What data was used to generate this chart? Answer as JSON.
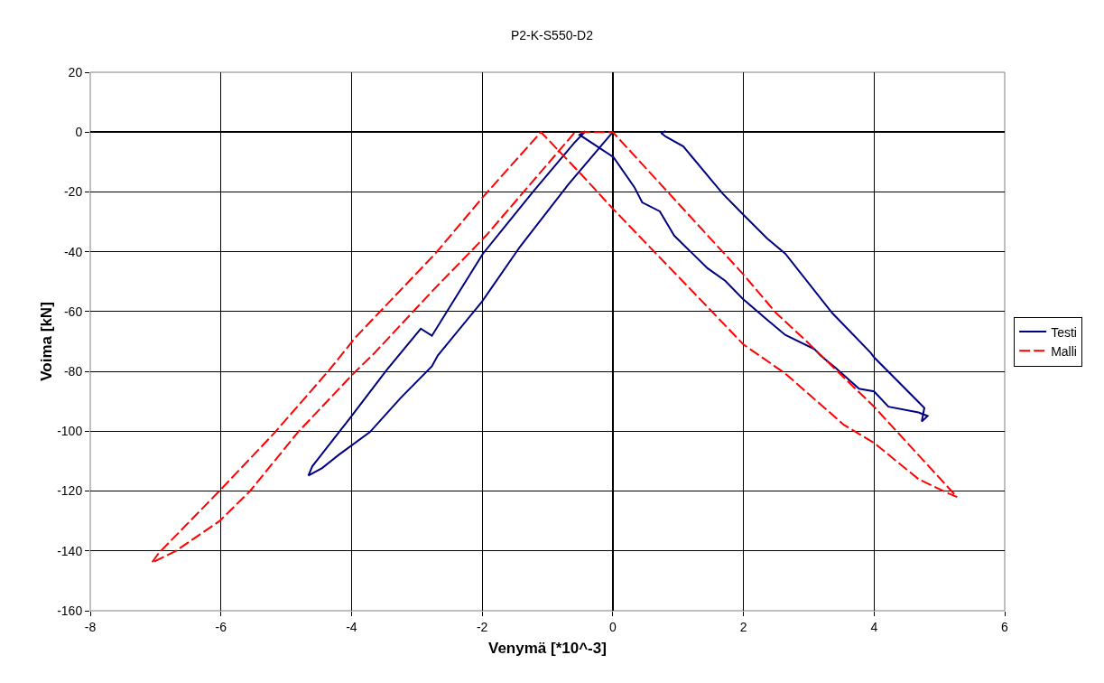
{
  "chart_data": {
    "type": "line",
    "title": "P2-K-S550-D2",
    "xlabel": "Venymä [*10^-3]",
    "ylabel": "Voima [kN]",
    "xlim": [
      -8,
      6
    ],
    "xticks": [
      -8,
      -6,
      -4,
      -2,
      0,
      2,
      4,
      6
    ],
    "ylim": [
      -160,
      20
    ],
    "yticks": [
      -160,
      -140,
      -120,
      -100,
      -80,
      -60,
      -40,
      -20,
      0,
      20
    ],
    "grid": true,
    "legend": "right",
    "marker": "none",
    "series": [
      {
        "name": "Testi",
        "color": "#000080",
        "line_style": "solid",
        "x": [
          0,
          -0.68,
          -1.42,
          -2.0,
          -2.68,
          -2.77,
          -3.25,
          -3.72,
          -4.19,
          -4.45,
          -4.66,
          -4.6,
          -4.03,
          -3.46,
          -2.94,
          -2.77,
          -1.99,
          -1.22,
          -0.59,
          -0.42,
          -0.51,
          0.01,
          0.33,
          0.45,
          0.72,
          0.94,
          1.22,
          1.45,
          1.72,
          1.99,
          2.36,
          2.64,
          3.09,
          3.18,
          3.4,
          3.77,
          4.0,
          4.22,
          4.68,
          4.82,
          4.73,
          4.77,
          4.0,
          3.95,
          3.36,
          2.64,
          2.36,
          1.99,
          1.68,
          1.08,
          0.81,
          0.74,
          0.81
        ],
        "values": [
          0,
          -17.5,
          -38.3,
          -56.6,
          -74.7,
          -78.3,
          -88.9,
          -100.3,
          -107.8,
          -112.3,
          -114.8,
          -111.7,
          -95.8,
          -79.5,
          -65.7,
          -68.1,
          -40.7,
          -19.9,
          -3.6,
          0.3,
          -0.9,
          -8.4,
          -18.4,
          -23.5,
          -26.5,
          -34.6,
          -40.6,
          -45.5,
          -49.7,
          -55.7,
          -62.7,
          -67.8,
          -72.6,
          -74.7,
          -78.6,
          -85.8,
          -86.7,
          -91.8,
          -93.7,
          -94.9,
          -96.7,
          -92.2,
          -75.3,
          -73.8,
          -60.5,
          -40.6,
          -35.5,
          -27.4,
          -20.5,
          -4.8,
          -1.5,
          -0.3,
          0.3
        ]
      },
      {
        "name": "Malli",
        "color": "#ff0000",
        "line_style": "dashed",
        "x": [
          -0.59,
          -1.94,
          -2.77,
          -3.66,
          -3.97,
          -4.82,
          -5.55,
          -6.02,
          -6.69,
          -7.06,
          -6.95,
          -6.02,
          -5.17,
          -4.34,
          -3.93,
          -2.72,
          -2.0,
          -1.1,
          -0.48,
          0,
          1.54,
          2.0,
          2.64,
          3.54,
          4.0,
          4.68,
          5.14,
          5.27,
          4.0,
          2.95,
          2.5,
          2.0,
          0,
          -0.5
        ],
        "values": [
          -0.3,
          -34.6,
          -53.3,
          -74.1,
          -80.7,
          -100.3,
          -119.9,
          -130,
          -140,
          -144,
          -140.7,
          -119.9,
          -100.3,
          -79.5,
          -68.4,
          -40.7,
          -22,
          0,
          -14.2,
          -25.6,
          -60.5,
          -71,
          -80.7,
          -97.9,
          -103.9,
          -116,
          -120.8,
          -122,
          -91.8,
          -69.6,
          -60.5,
          -47.6,
          0,
          0
        ]
      }
    ]
  }
}
